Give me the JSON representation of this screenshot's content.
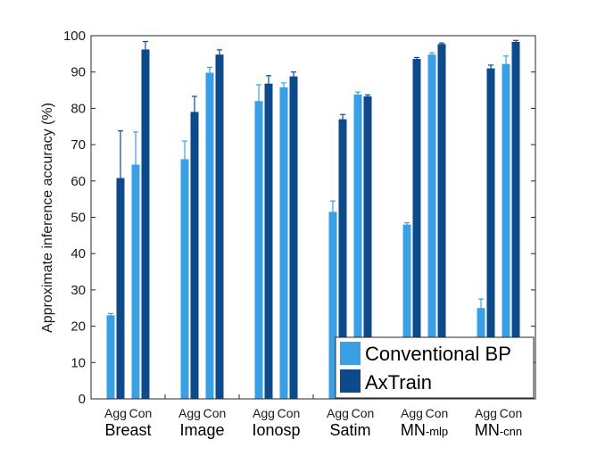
{
  "chart_data": {
    "type": "bar",
    "ylabel": "Approximate inference accuracy (%)",
    "ylim": [
      0,
      100
    ],
    "yticks": [
      0,
      10,
      20,
      30,
      40,
      50,
      60,
      70,
      80,
      90,
      100
    ],
    "subcategories": [
      "Agg",
      "Con"
    ],
    "groups": [
      {
        "name": "Breast",
        "suffix": ""
      },
      {
        "name": "Image",
        "suffix": ""
      },
      {
        "name": "Ionosp",
        "suffix": ""
      },
      {
        "name": "Satim",
        "suffix": ""
      },
      {
        "name": "MN",
        "suffix": "-mlp"
      },
      {
        "name": "MN",
        "suffix": "-cnn"
      }
    ],
    "series": [
      {
        "name": "Conventional BP",
        "color": "#3aa0e6",
        "values": [
          [
            23,
            64.5
          ],
          [
            66,
            89.8
          ],
          [
            82,
            85.8
          ],
          [
            51.5,
            83.8
          ],
          [
            48,
            94.8
          ],
          [
            25,
            92.2
          ]
        ],
        "errors": [
          [
            0.5,
            9
          ],
          [
            5,
            1.5
          ],
          [
            4.5,
            1.2
          ],
          [
            3,
            0.7
          ],
          [
            0.5,
            0.5
          ],
          [
            2.5,
            2.2
          ]
        ]
      },
      {
        "name": "AxTrain",
        "color": "#0d4a8c",
        "values": [
          [
            60.8,
            96.2
          ],
          [
            79,
            94.8
          ],
          [
            86.8,
            88.8
          ],
          [
            77,
            83.3
          ],
          [
            93.6,
            97.7
          ],
          [
            91,
            98.3
          ]
        ],
        "errors": [
          [
            13,
            2.2
          ],
          [
            4.3,
            1.3
          ],
          [
            2.2,
            1.2
          ],
          [
            1.3,
            0.4
          ],
          [
            0.4,
            0.3
          ],
          [
            0.9,
            0.4
          ]
        ]
      }
    ],
    "legend_position": "bottom-right",
    "grid": false
  }
}
